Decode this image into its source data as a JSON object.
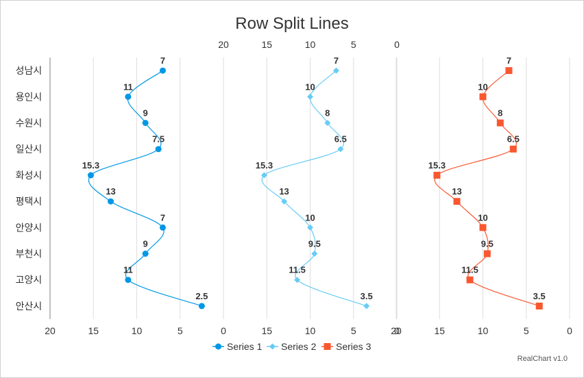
{
  "chart_data": {
    "type": "line",
    "title": "Row Split Lines",
    "categories": [
      "성남시",
      "용인시",
      "수원시",
      "일산시",
      "화성시",
      "평택시",
      "안양시",
      "부천시",
      "고양시",
      "안산시"
    ],
    "x_ticks": [
      "20",
      "15",
      "10",
      "5",
      "0"
    ],
    "xlim": [
      20,
      0
    ],
    "grid": true,
    "legend_position": "bottom",
    "series": [
      {
        "name": "Series 1",
        "values": [
          7,
          11,
          9,
          7.5,
          15.3,
          13,
          7,
          9,
          11,
          2.5
        ],
        "color": "#0098e6",
        "marker": "circle"
      },
      {
        "name": "Series 2",
        "values": [
          7,
          10,
          8,
          6.5,
          15.3,
          13,
          10,
          9.5,
          11.5,
          3.5
        ],
        "color": "#66ccf5",
        "marker": "diamond"
      },
      {
        "name": "Series 3",
        "values": [
          7,
          10,
          8,
          6.5,
          15.3,
          13,
          10,
          9.5,
          11.5,
          3.5
        ],
        "color": "#f95730",
        "marker": "square"
      }
    ],
    "credit": "RealChart v1.0"
  }
}
